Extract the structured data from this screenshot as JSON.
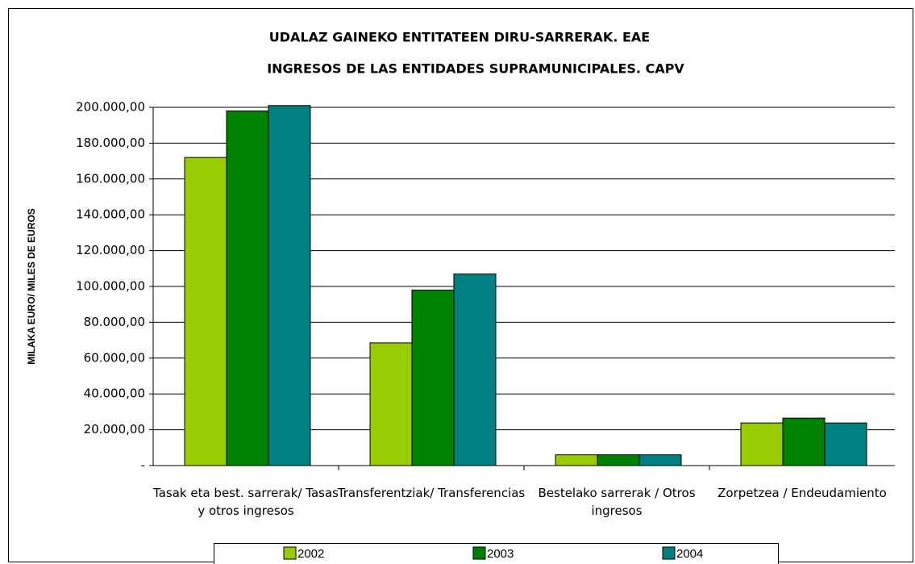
{
  "chart_data": {
    "type": "bar",
    "title": "UDALAZ GAINEKO ENTITATEEN DIRU-SARRERAK. EAE",
    "subtitle": "INGRESOS DE LAS ENTIDADES SUPRAMUNICIPALES. CAPV",
    "y_label": "MILAKA EURO/ MILES DE EUROS",
    "categories": [
      "Tasak eta best. sarrerak/ Tasas y otros ingresos",
      "Transferentziak/ Transferencias",
      "Bestelako sarrerak / Otros ingresos",
      "Zorpetzea / Endeudamiento"
    ],
    "series": [
      {
        "name": "2002",
        "color": "#99cc00",
        "values": [
          172000,
          68500,
          6000,
          23800
        ]
      },
      {
        "name": "2003",
        "color": "#008000",
        "values": [
          198000,
          98000,
          6000,
          26500
        ]
      },
      {
        "name": "2004",
        "color": "#008080",
        "values": [
          201000,
          107000,
          6000,
          23800
        ]
      }
    ],
    "ylim": [
      0,
      200000
    ],
    "yticks": [
      {
        "value": 0,
        "label": "-"
      },
      {
        "value": 20000,
        "label": "20.000,00"
      },
      {
        "value": 40000,
        "label": "40.000,00"
      },
      {
        "value": 60000,
        "label": "60.000,00"
      },
      {
        "value": 80000,
        "label": "80.000,00"
      },
      {
        "value": 100000,
        "label": "100.000,00"
      },
      {
        "value": 120000,
        "label": "120.000,00"
      },
      {
        "value": 140000,
        "label": "140.000,00"
      },
      {
        "value": 160000,
        "label": "160.000,00"
      },
      {
        "value": 180000,
        "label": "180.000,00"
      },
      {
        "value": 200000,
        "label": "200.000,00"
      }
    ],
    "grid": true,
    "legend": "bottom"
  }
}
